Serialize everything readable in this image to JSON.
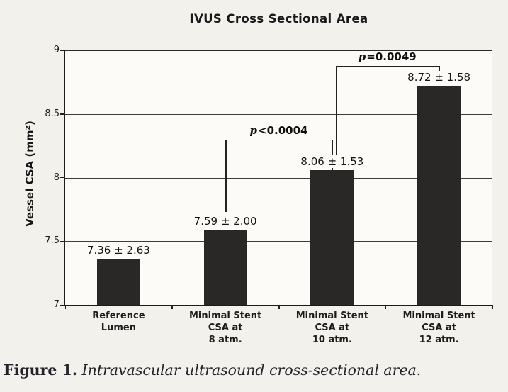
{
  "caption": {
    "label": "Figure 1.",
    "text": " Intravascular ultrasound cross-sectional area."
  },
  "chart_data": {
    "type": "bar",
    "title": "IVUS Cross Sectional Area",
    "ylabel": "Vessel CSA (mm²)",
    "xlabel": "",
    "ylim": [
      7,
      9
    ],
    "yticks": [
      9,
      8.5,
      8,
      7.5,
      7
    ],
    "ytick_labels": [
      "9",
      "8.5",
      "8",
      "7.5",
      "7"
    ],
    "grid": true,
    "legend": false,
    "bar_color": "#292826",
    "categories": [
      "Reference Lumen",
      "Minimal Stent CSA at 8 atm.",
      "Minimal Stent CSA at 10 atm.",
      "Minimal Stent CSA at 12 atm."
    ],
    "category_lines": [
      [
        "Reference",
        "Lumen"
      ],
      [
        "Minimal Stent",
        "CSA at",
        "8 atm."
      ],
      [
        "Minimal Stent",
        "CSA at",
        "10 atm."
      ],
      [
        "Minimal Stent",
        "CSA at",
        "12 atm."
      ]
    ],
    "values": [
      7.36,
      7.59,
      8.06,
      8.72
    ],
    "errors": [
      2.63,
      2.0,
      1.53,
      1.58
    ],
    "bar_labels": [
      "7.36 ± 2.63",
      "7.59 ± 2.00",
      "8.06 ± 1.53",
      "8.72 ± 1.58"
    ],
    "annotations": [
      {
        "p_symbol": "p",
        "rest": "<0.0004",
        "label": "p<0.0004",
        "from_bar": 1,
        "to_bar": 2,
        "line_value": 8.3,
        "left_drop_value": 7.73,
        "right_drop_value": 8.06,
        "left_dx": 0,
        "right_dx": 0
      },
      {
        "p_symbol": "p",
        "rest": "=0.0049",
        "label": "p=0.0049",
        "from_bar": 2,
        "to_bar": 3,
        "line_value": 8.88,
        "left_drop_value": 8.15,
        "right_drop_value": 8.82,
        "left_dx": 5,
        "right_dx": 0
      }
    ]
  }
}
